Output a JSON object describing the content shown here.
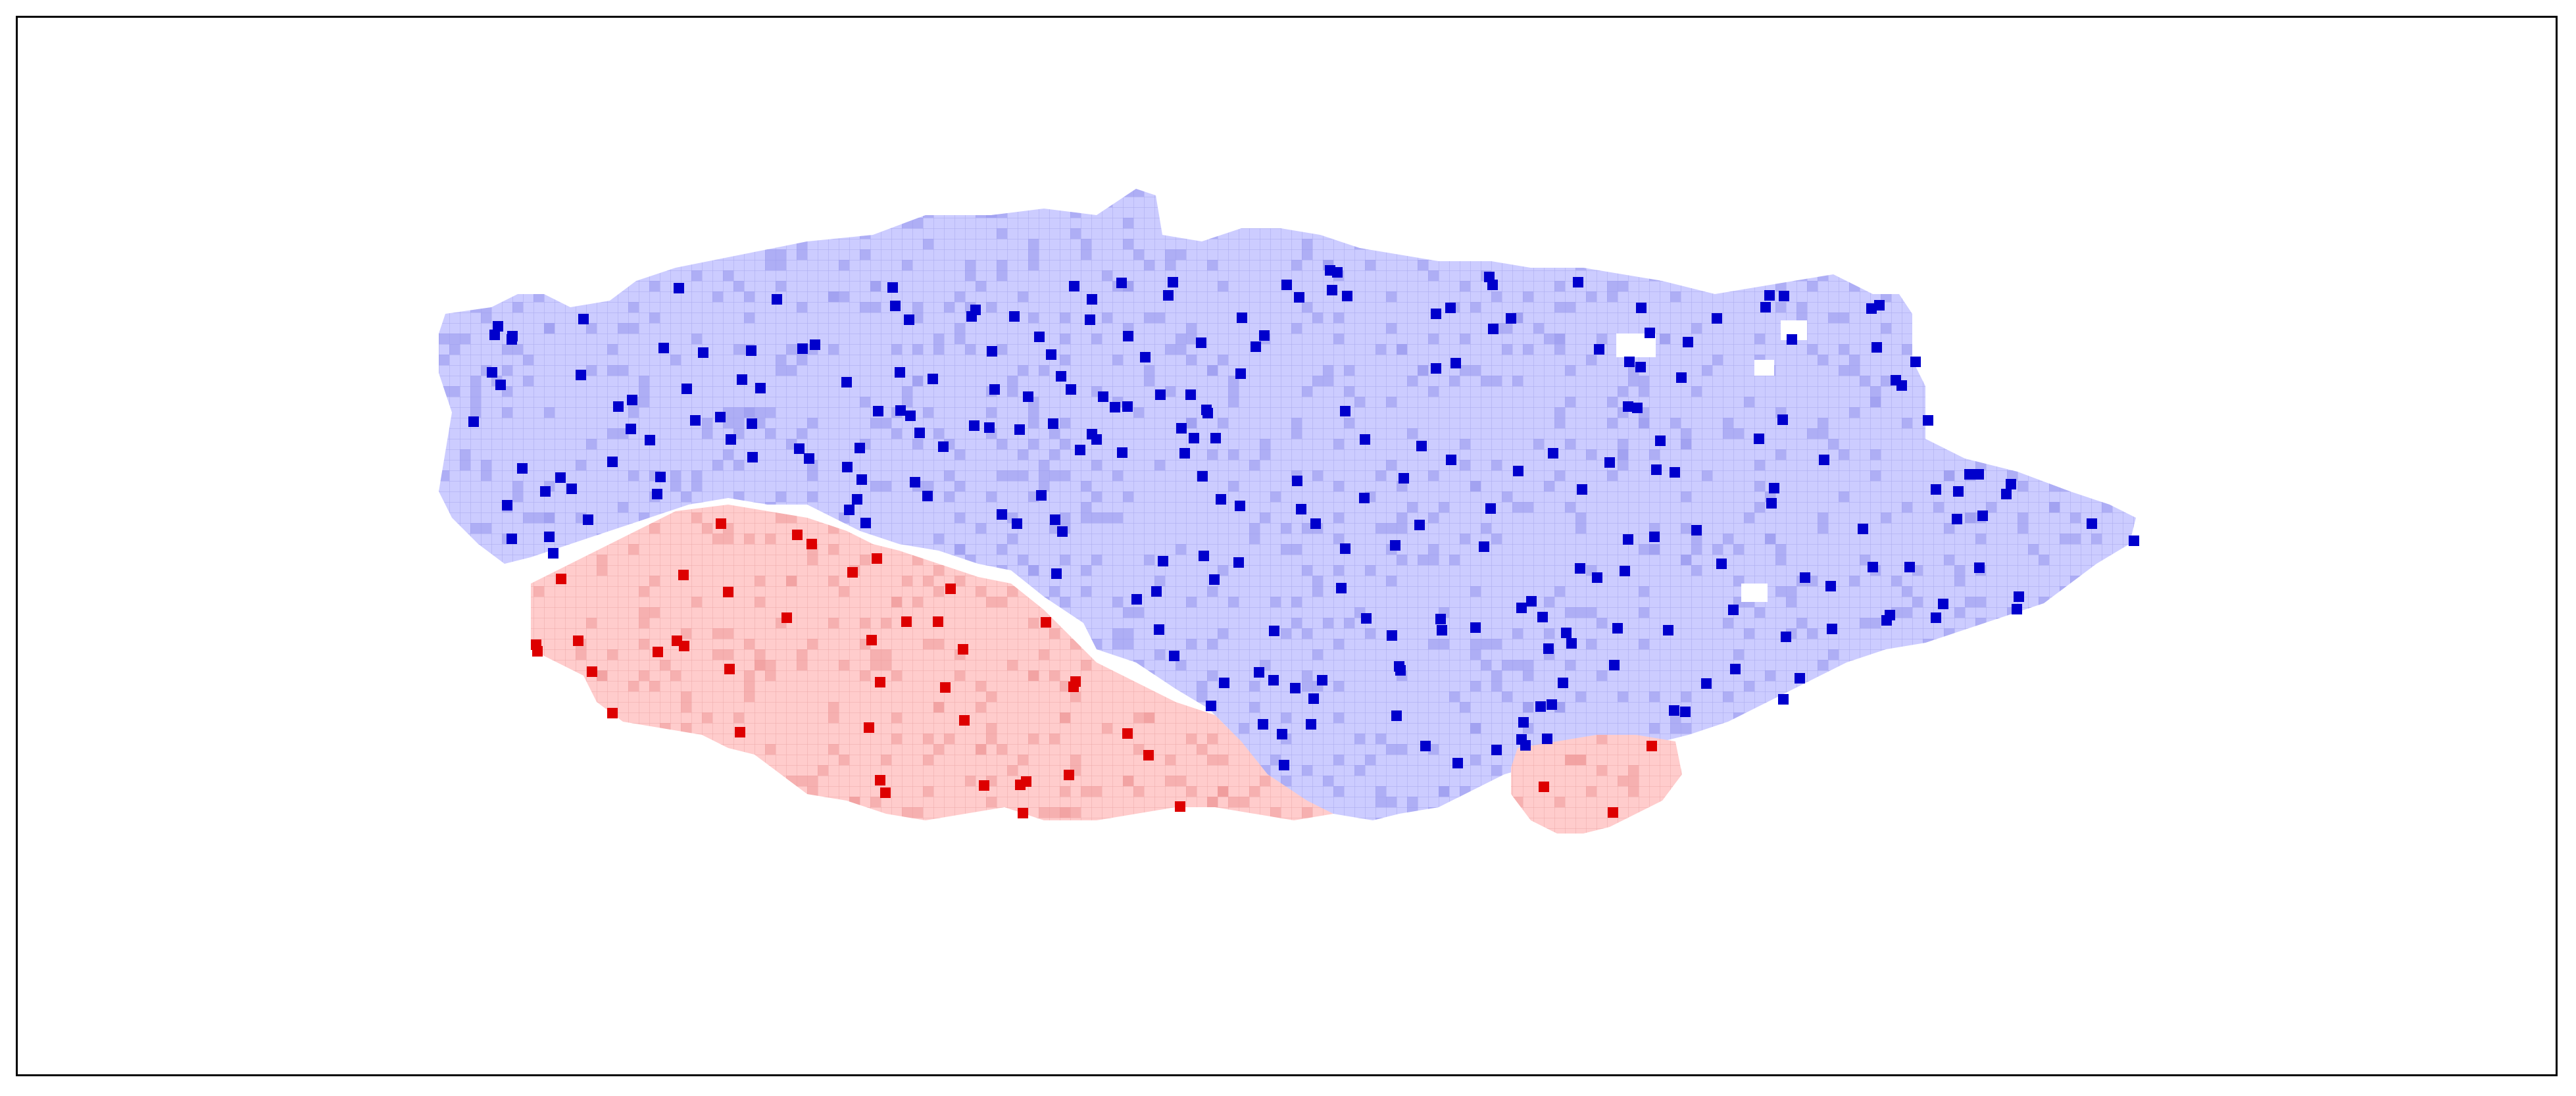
{
  "map": {
    "colors": {
      "blue_fill": "#ccccff",
      "blue_grid": "#a9a9ee",
      "blue_dense": "#9a9aee",
      "blue_marker": "#0000cc",
      "red_fill": "#ffcccc",
      "red_grid": "#eeaaaa",
      "red_dense": "#ee9999",
      "red_marker": "#dd0000",
      "frame": "#000000",
      "background": "#ffffff"
    },
    "regions": [
      {
        "name": "blue-region",
        "color": "blue"
      },
      {
        "name": "red-region-large",
        "color": "red"
      },
      {
        "name": "red-region-small",
        "color": "red"
      }
    ],
    "markers": {
      "blue_count": 260,
      "red_count": 44
    }
  }
}
